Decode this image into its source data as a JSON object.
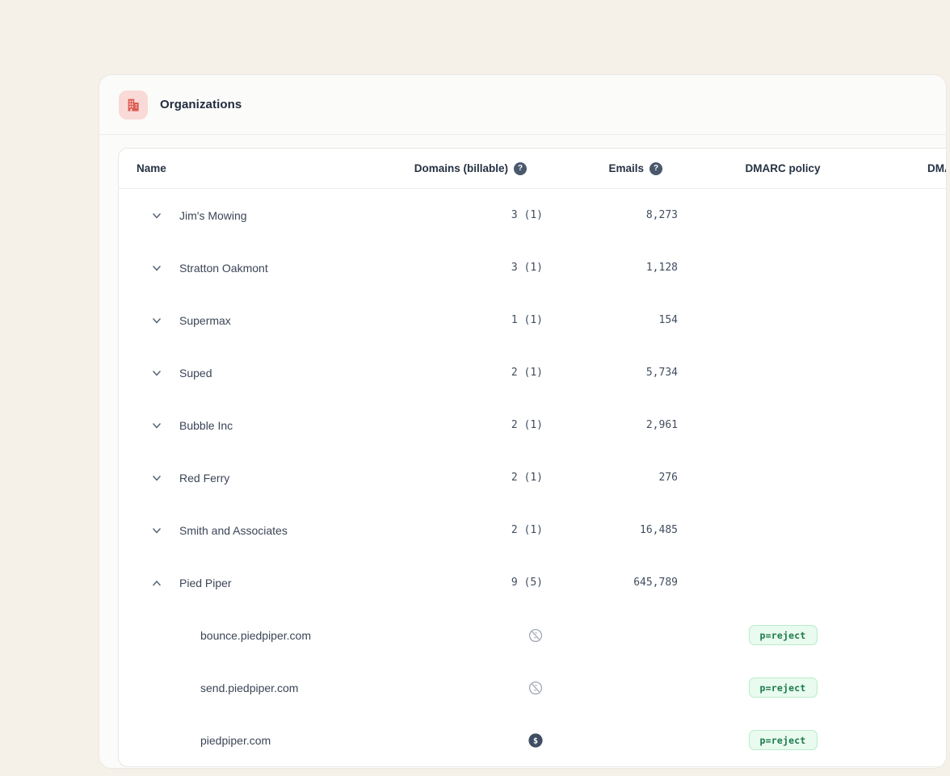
{
  "page": {
    "background_color": "#f5f1e8"
  },
  "card": {
    "title": "Organizations",
    "icon": "building-icon",
    "accent_color": "#dd5b52",
    "icon_tile_color": "#f9dad7"
  },
  "table": {
    "columns": {
      "name": "Name",
      "domains": "Domains (billable)",
      "emails": "Emails",
      "dmarc_policy": "DMARC policy",
      "dmarc_extra_truncated": "DMA"
    },
    "help_icon_glyph": "?",
    "badge_colors": {
      "background": "#e9faef",
      "border": "#b9eccb",
      "text": "#1b7a4a"
    },
    "rows": [
      {
        "type": "org",
        "name": "Jim's Mowing",
        "expanded": false,
        "domains": "3 (1)",
        "emails": "8,273",
        "dmarc_policy": ""
      },
      {
        "type": "org",
        "name": "Stratton Oakmont",
        "expanded": false,
        "domains": "3 (1)",
        "emails": "1,128",
        "dmarc_policy": ""
      },
      {
        "type": "org",
        "name": "Supermax",
        "expanded": false,
        "domains": "1 (1)",
        "emails": "154",
        "dmarc_policy": ""
      },
      {
        "type": "org",
        "name": "Suped",
        "expanded": false,
        "domains": "2 (1)",
        "emails": "5,734",
        "dmarc_policy": ""
      },
      {
        "type": "org",
        "name": "Bubble Inc",
        "expanded": false,
        "domains": "2 (1)",
        "emails": "2,961",
        "dmarc_policy": ""
      },
      {
        "type": "org",
        "name": "Red Ferry",
        "expanded": false,
        "domains": "2 (1)",
        "emails": "276",
        "dmarc_policy": ""
      },
      {
        "type": "org",
        "name": "Smith and Associates",
        "expanded": false,
        "domains": "2 (1)",
        "emails": "16,485",
        "dmarc_policy": ""
      },
      {
        "type": "org",
        "name": "Pied Piper",
        "expanded": true,
        "domains": "9 (5)",
        "emails": "645,789",
        "dmarc_policy": ""
      },
      {
        "type": "domain",
        "name": "bounce.piedpiper.com",
        "billable": false,
        "domains": "",
        "emails": "",
        "dmarc_policy": "p=reject"
      },
      {
        "type": "domain",
        "name": "send.piedpiper.com",
        "billable": false,
        "domains": "",
        "emails": "",
        "dmarc_policy": "p=reject"
      },
      {
        "type": "domain",
        "name": "piedpiper.com",
        "billable": true,
        "domains": "",
        "emails": "",
        "dmarc_policy": "p=reject"
      }
    ]
  }
}
